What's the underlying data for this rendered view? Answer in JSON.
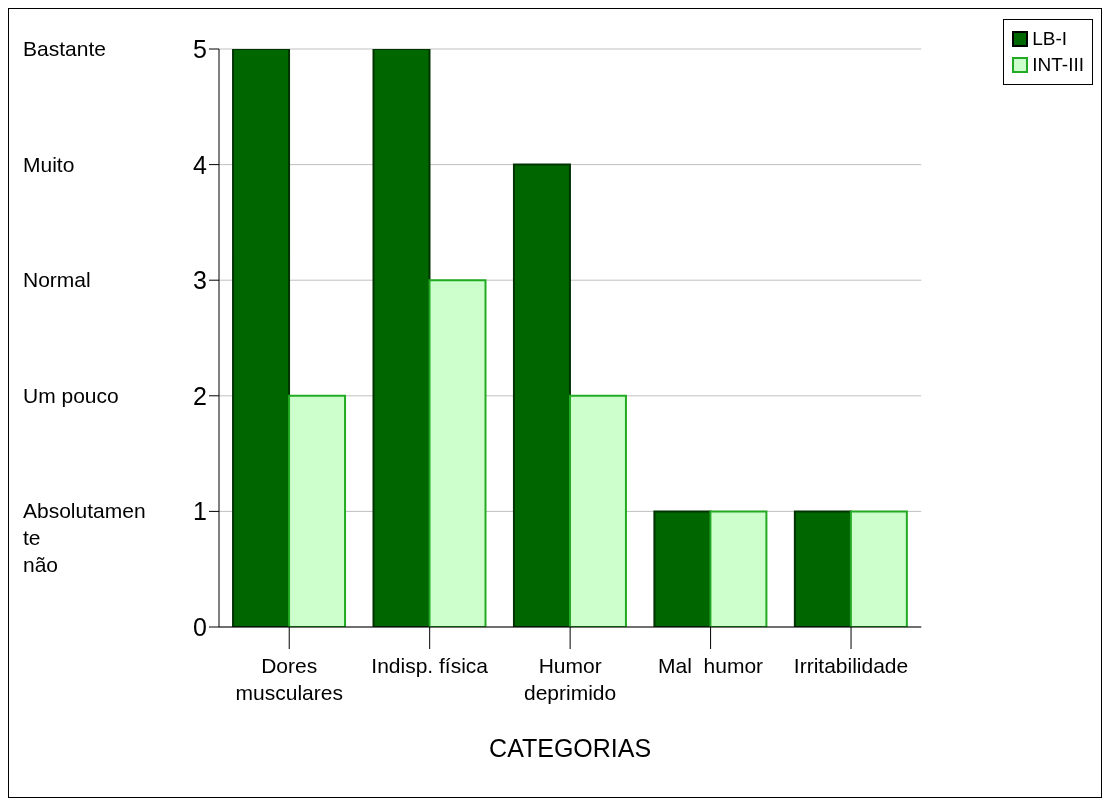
{
  "chart_data": {
    "type": "bar",
    "xlabel": "CATEGORIAS",
    "categories": [
      "Dores musculares",
      "Indisp. física",
      "Humor deprimido",
      "Mal  humor",
      "Irritabilidade"
    ],
    "series": [
      {
        "name": "LB-I",
        "color": "#006600",
        "values": [
          5,
          5,
          4,
          1,
          1
        ]
      },
      {
        "name": "INT-III",
        "color": "#ccffcc",
        "values": [
          2,
          3,
          2,
          1,
          1
        ]
      }
    ],
    "ylim": [
      0,
      5
    ],
    "yticks": [
      0,
      1,
      2,
      3,
      4,
      5
    ],
    "annotations": [
      "Bastante",
      "Muito",
      "Normal",
      "Um pouco",
      "Absolutamente não"
    ],
    "grid": "y",
    "legend": "top right"
  }
}
